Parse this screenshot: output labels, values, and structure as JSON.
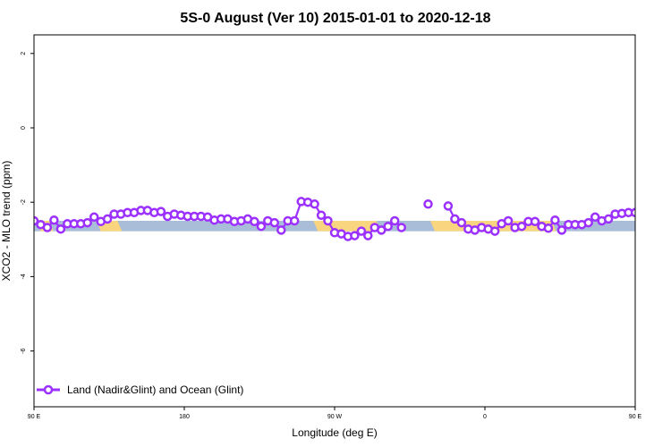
{
  "chart_data": {
    "type": "line",
    "title": "5S-0 August (Ver 10)   2015-01-01 to 2020-12-18",
    "xlabel": "Longitude (deg E)",
    "ylabel": "XCO2 - MLO trend (ppm)",
    "xlim": [
      90,
      450
    ],
    "ylim": [
      -7.5,
      2.5
    ],
    "x_ticks": [
      {
        "value": 90,
        "label": "90 E"
      },
      {
        "value": 180,
        "label": "180"
      },
      {
        "value": 270,
        "label": "90 W"
      },
      {
        "value": 360,
        "label": "0"
      },
      {
        "value": 450,
        "label": "90 E"
      },
      {
        "value": 540,
        "label": "180"
      }
    ],
    "y_ticks": [
      {
        "value": 2,
        "label": "2"
      },
      {
        "value": 0,
        "label": "0"
      },
      {
        "value": -2,
        "label": "-2"
      },
      {
        "value": -4,
        "label": "-4"
      },
      {
        "value": -6,
        "label": "-6"
      }
    ],
    "grid": false,
    "legend_position": "bottom-left",
    "colors": {
      "series": "#9b30ff",
      "ocean_band": "#a9bcd8",
      "land_band": "#f8d57e"
    },
    "band": {
      "y_low": -2.78,
      "y_high": -2.5
    },
    "land_segments": [
      {
        "x_start": 94,
        "x_end": 99
      },
      {
        "x_start": 130,
        "x_end": 140
      },
      {
        "x_start": 260,
        "x_end": 295
      },
      {
        "x_start": 330,
        "x_end": 370
      },
      {
        "x_start": 370,
        "x_end": 400
      },
      {
        "x_start": 481,
        "x_end": 492
      },
      {
        "x_start": 520,
        "x_end": 530
      }
    ],
    "series": [
      {
        "name": "Land (Nadir&Glint) and Ocean (Glint)",
        "points": [
          [
            90,
            -2.5
          ],
          [
            94,
            -2.6
          ],
          [
            98,
            -2.68
          ],
          [
            102,
            -2.48
          ],
          [
            106,
            -2.72
          ],
          [
            110,
            -2.58
          ],
          [
            114,
            -2.58
          ],
          [
            118,
            -2.58
          ],
          [
            122,
            -2.55
          ],
          [
            126,
            -2.4
          ],
          [
            130,
            -2.52
          ],
          [
            134,
            -2.45
          ],
          [
            138,
            -2.32
          ],
          [
            142,
            -2.32
          ],
          [
            146,
            -2.28
          ],
          [
            150,
            -2.28
          ],
          [
            154,
            -2.22
          ],
          [
            158,
            -2.22
          ],
          [
            162,
            -2.28
          ],
          [
            166,
            -2.25
          ],
          [
            170,
            -2.38
          ],
          [
            174,
            -2.32
          ],
          [
            178,
            -2.35
          ],
          [
            182,
            -2.38
          ],
          [
            186,
            -2.38
          ],
          [
            190,
            -2.38
          ],
          [
            194,
            -2.4
          ],
          [
            198,
            -2.48
          ],
          [
            202,
            -2.45
          ],
          [
            206,
            -2.45
          ],
          [
            210,
            -2.52
          ],
          [
            214,
            -2.5
          ],
          [
            218,
            -2.45
          ],
          [
            222,
            -2.52
          ],
          [
            226,
            -2.65
          ],
          [
            230,
            -2.5
          ],
          [
            234,
            -2.55
          ],
          [
            238,
            -2.75
          ],
          [
            242,
            -2.5
          ],
          [
            246,
            -2.5
          ],
          [
            250,
            -1.98
          ],
          [
            254,
            -2.0
          ],
          [
            258,
            -2.05
          ],
          [
            262,
            -2.35
          ],
          [
            266,
            -2.5
          ],
          [
            270,
            -2.82
          ],
          [
            274,
            -2.85
          ],
          [
            278,
            -2.92
          ],
          [
            282,
            -2.9
          ],
          [
            286,
            -2.78
          ],
          [
            290,
            -2.9
          ],
          [
            294,
            -2.68
          ],
          [
            298,
            -2.75
          ],
          [
            302,
            -2.65
          ],
          [
            306,
            -2.5
          ],
          [
            310,
            -2.68
          ],
          [
            326,
            -2.05
          ],
          [
            338,
            -2.1
          ],
          [
            342,
            -2.45
          ],
          [
            346,
            -2.55
          ],
          [
            350,
            -2.72
          ],
          [
            354,
            -2.75
          ],
          [
            358,
            -2.68
          ],
          [
            362,
            -2.72
          ],
          [
            366,
            -2.78
          ],
          [
            370,
            -2.58
          ],
          [
            374,
            -2.5
          ],
          [
            378,
            -2.68
          ],
          [
            382,
            -2.65
          ],
          [
            386,
            -2.52
          ],
          [
            390,
            -2.52
          ],
          [
            394,
            -2.65
          ],
          [
            398,
            -2.7
          ],
          [
            402,
            -2.48
          ],
          [
            406,
            -2.75
          ],
          [
            410,
            -2.6
          ],
          [
            414,
            -2.6
          ],
          [
            418,
            -2.6
          ],
          [
            422,
            -2.55
          ],
          [
            426,
            -2.4
          ],
          [
            430,
            -2.5
          ],
          [
            434,
            -2.45
          ],
          [
            438,
            -2.32
          ],
          [
            442,
            -2.3
          ],
          [
            446,
            -2.28
          ],
          [
            450,
            -2.28
          ],
          [
            454,
            -2.22
          ],
          [
            458,
            -2.22
          ]
        ]
      }
    ]
  }
}
